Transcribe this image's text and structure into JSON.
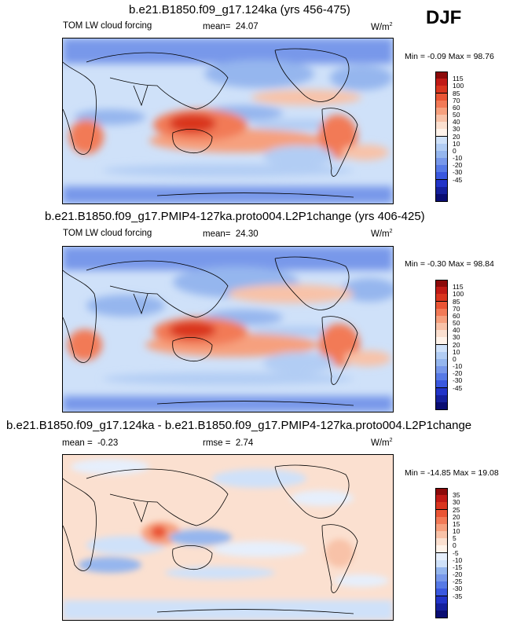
{
  "season": "DJF",
  "palettes": {
    "main": [
      "#8c0a0a",
      "#c01a16",
      "#d9351f",
      "#ea5535",
      "#f27a57",
      "#f6a07e",
      "#f8c2a8",
      "#fbe0d0",
      "#fff3ea",
      "#cfe1f9",
      "#b2cdf4",
      "#95b6ee",
      "#7898ea",
      "#577ae6",
      "#3a58df",
      "#2234c8",
      "#15209c",
      "#0a0d72"
    ],
    "diff": [
      "#8c0a0a",
      "#c01a16",
      "#d9351f",
      "#ea5535",
      "#f27a57",
      "#f6a07e",
      "#f8c2a8",
      "#fbe0d0",
      "#fff3ea",
      "#e6effc",
      "#cfe1f9",
      "#95b6ee",
      "#7898ea",
      "#577ae6",
      "#3a58df",
      "#2234c8",
      "#15209c",
      "#0a0d72"
    ]
  },
  "panels": [
    {
      "title": "b.e21.B1850.f09_g17.124ka (yrs 456-475)",
      "variable": "TOM LW cloud forcing",
      "mean_label": "mean=",
      "mean_value": "24.07",
      "units": "W/m",
      "units_exp": "2",
      "min_label": "Min =",
      "min_value": "-0.09",
      "max_label": "Max =",
      "max_value": "98.76",
      "colorbar_labels": [
        "115",
        "100",
        "85",
        "70",
        "60",
        "50",
        "40",
        "30",
        "20",
        "10",
        "0",
        "-10",
        "-20",
        "-30",
        "-45"
      ]
    },
    {
      "title": "b.e21.B1850.f09_g17.PMIP4-127ka.proto004.L2P1change (yrs 406-425)",
      "variable": "TOM LW cloud forcing",
      "mean_label": "mean=",
      "mean_value": "24.30",
      "units": "W/m",
      "units_exp": "2",
      "min_label": "Min =",
      "min_value": "-0.30",
      "max_label": "Max =",
      "max_value": "98.84",
      "colorbar_labels": [
        "115",
        "100",
        "85",
        "70",
        "60",
        "50",
        "40",
        "30",
        "20",
        "10",
        "0",
        "-10",
        "-20",
        "-30",
        "-45"
      ]
    },
    {
      "title": "b.e21.B1850.f09_g17.124ka - b.e21.B1850.f09_g17.PMIP4-127ka.proto004.L2P1change",
      "mean_label": "mean =",
      "mean_value": "-0.23",
      "rmse_label": "rmse =",
      "rmse_value": "2.74",
      "units": "W/m",
      "units_exp": "2",
      "min_label": "Min =",
      "min_value": "-14.85",
      "max_label": "Max =",
      "max_value": "19.08",
      "colorbar_labels": [
        "35",
        "30",
        "25",
        "20",
        "15",
        "10",
        "5",
        "0",
        "-5",
        "-10",
        "-15",
        "-20",
        "-25",
        "-30",
        "-35"
      ]
    }
  ],
  "chart_data": [
    {
      "type": "heatmap",
      "title": "b.e21.B1850.f09_g17.124ka (yrs 456-475)",
      "variable": "TOM LW cloud forcing",
      "units": "W/m2",
      "mean": 24.07,
      "min": -0.09,
      "max": 98.76,
      "levels": [
        115,
        100,
        85,
        70,
        60,
        50,
        40,
        30,
        20,
        10,
        0,
        -10,
        -20,
        -30,
        -45
      ]
    },
    {
      "type": "heatmap",
      "title": "b.e21.B1850.f09_g17.PMIP4-127ka.proto004.L2P1change (yrs 406-425)",
      "variable": "TOM LW cloud forcing",
      "units": "W/m2",
      "mean": 24.3,
      "min": -0.3,
      "max": 98.84,
      "levels": [
        115,
        100,
        85,
        70,
        60,
        50,
        40,
        30,
        20,
        10,
        0,
        -10,
        -20,
        -30,
        -45
      ]
    },
    {
      "type": "heatmap",
      "title": "b.e21.B1850.f09_g17.124ka - b.e21.B1850.f09_g17.PMIP4-127ka.proto004.L2P1change",
      "units": "W/m2",
      "mean": -0.23,
      "rmse": 2.74,
      "min": -14.85,
      "max": 19.08,
      "levels": [
        35,
        30,
        25,
        20,
        15,
        10,
        5,
        0,
        -5,
        -10,
        -15,
        -20,
        -25,
        -30,
        -35
      ]
    }
  ]
}
